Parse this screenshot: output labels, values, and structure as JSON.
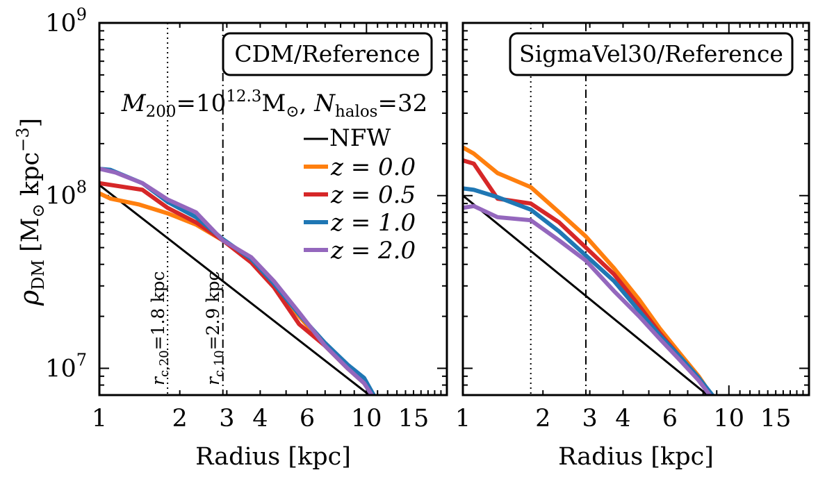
{
  "chart_data": [
    {
      "type": "line",
      "panel": "left",
      "title": "CDM/Reference",
      "annotation": "M200=10^12.3 M⊙, Nhalos=32",
      "xlabel": "Radius [kpc]",
      "ylabel": "ρDM [M⊙ kpc−3]",
      "xscale": "log",
      "yscale": "log",
      "xlim": [
        1,
        20
      ],
      "ylim": [
        7000000,
        1000000000
      ],
      "x_ticks": [
        1,
        2,
        3,
        4,
        6,
        10,
        15
      ],
      "y_ticks": [
        10000000,
        100000000,
        1000000000
      ],
      "vlines": [
        {
          "x": 1.8,
          "style": "dotted",
          "label": "rc,20=1.8 kpc"
        },
        {
          "x": 2.9,
          "style": "dashdot",
          "label": "rc,10=2.9 kpc"
        }
      ],
      "legend": {
        "position": "upper-right",
        "entries": [
          "NFW",
          "z = 0.0",
          "z = 0.5",
          "z = 1.0",
          "z = 2.0"
        ]
      },
      "series": [
        {
          "name": "NFW",
          "color": "#000000",
          "x": [
            1,
            10.5
          ],
          "y": [
            115000000,
            6800000
          ]
        },
        {
          "name": "z = 0.0",
          "color": "#ff7f0e",
          "x": [
            1,
            1.1,
            1.4,
            1.8,
            2.3,
            2.9,
            3.7,
            4.5,
            5.6,
            7,
            8.5,
            9.8,
            10.6
          ],
          "y": [
            103000000,
            96000000,
            89000000,
            79000000,
            68000000,
            55000000,
            42000000,
            30000000,
            20000000,
            13500000,
            10000000,
            8200000,
            6900000
          ]
        },
        {
          "name": "z = 0.5",
          "color": "#d62728",
          "x": [
            1,
            1.45,
            1.8,
            2.3,
            2.9,
            3.7,
            4.5,
            5.6,
            7,
            8.5,
            9.8,
            10.6
          ],
          "y": [
            118000000,
            108000000,
            85000000,
            70000000,
            55000000,
            41000000,
            29500000,
            18000000,
            13500000,
            10000000,
            8300000,
            6900000
          ]
        },
        {
          "name": "z = 1.0",
          "color": "#1f77b4",
          "x": [
            1,
            1.1,
            1.45,
            1.8,
            2.3,
            2.9,
            3.7,
            4.5,
            5.6,
            7,
            8.5,
            9.8,
            10.7
          ],
          "y": [
            143000000,
            141000000,
            118000000,
            92000000,
            75000000,
            56000000,
            43000000,
            31000000,
            20500000,
            14000000,
            10500000,
            8800000,
            6900000
          ]
        },
        {
          "name": "z = 2.0",
          "color": "#9467bd",
          "x": [
            1,
            1.15,
            1.45,
            1.8,
            2.3,
            2.9,
            3.7,
            4.5,
            5.6,
            7,
            8.5,
            9.8,
            10.6
          ],
          "y": [
            143000000,
            136000000,
            118000000,
            95000000,
            80000000,
            55000000,
            44000000,
            32000000,
            21000000,
            13500000,
            10000000,
            8200000,
            6800000
          ]
        }
      ]
    },
    {
      "type": "line",
      "panel": "right",
      "title": "SigmaVel30/Reference",
      "xlabel": "Radius [kpc]",
      "xscale": "log",
      "yscale": "log",
      "xlim": [
        1,
        20
      ],
      "ylim": [
        7000000,
        1000000000
      ],
      "x_ticks": [
        1,
        2,
        3,
        4,
        6,
        10,
        15
      ],
      "vlines": [
        {
          "x": 1.8,
          "style": "dotted"
        },
        {
          "x": 2.9,
          "style": "dashdot"
        }
      ],
      "series": [
        {
          "name": "NFW",
          "color": "#000000",
          "x": [
            1,
            8.5
          ],
          "y": [
            100000000,
            6800000
          ]
        },
        {
          "name": "z = 0.0",
          "color": "#ff7f0e",
          "x": [
            1,
            1.1,
            1.35,
            1.8,
            2.3,
            2.9,
            3.7,
            4.6,
            5.5,
            6.6,
            7.7,
            8.7
          ],
          "y": [
            190000000,
            175000000,
            135000000,
            112000000,
            80000000,
            58000000,
            38000000,
            25000000,
            17000000,
            12000000,
            9000000,
            6800000
          ]
        },
        {
          "name": "z = 0.5",
          "color": "#d62728",
          "x": [
            1,
            1.1,
            1.35,
            1.8,
            2.3,
            2.9,
            3.7,
            4.6,
            5.5,
            6.6,
            7.7,
            8.6
          ],
          "y": [
            160000000,
            153000000,
            96000000,
            90000000,
            70000000,
            50000000,
            35000000,
            23000000,
            16000000,
            11500000,
            8800000,
            6800000
          ]
        },
        {
          "name": "z = 1.0",
          "color": "#1f77b4",
          "x": [
            1,
            1.1,
            1.35,
            1.8,
            2.3,
            2.9,
            3.7,
            4.6,
            5.5,
            6.6,
            7.7,
            8.8
          ],
          "y": [
            110000000,
            108000000,
            98000000,
            83000000,
            62000000,
            45000000,
            32000000,
            21500000,
            15500000,
            11500000,
            8800000,
            6800000
          ]
        },
        {
          "name": "z = 2.0",
          "color": "#9467bd",
          "x": [
            1,
            1.1,
            1.35,
            1.8,
            2.3,
            2.9,
            3.7,
            4.6,
            5.5,
            6.6,
            7.7,
            8.6
          ],
          "y": [
            85000000,
            87000000,
            75000000,
            72000000,
            55000000,
            42000000,
            28000000,
            20000000,
            14800000,
            11000000,
            8500000,
            6800000
          ]
        }
      ]
    }
  ]
}
